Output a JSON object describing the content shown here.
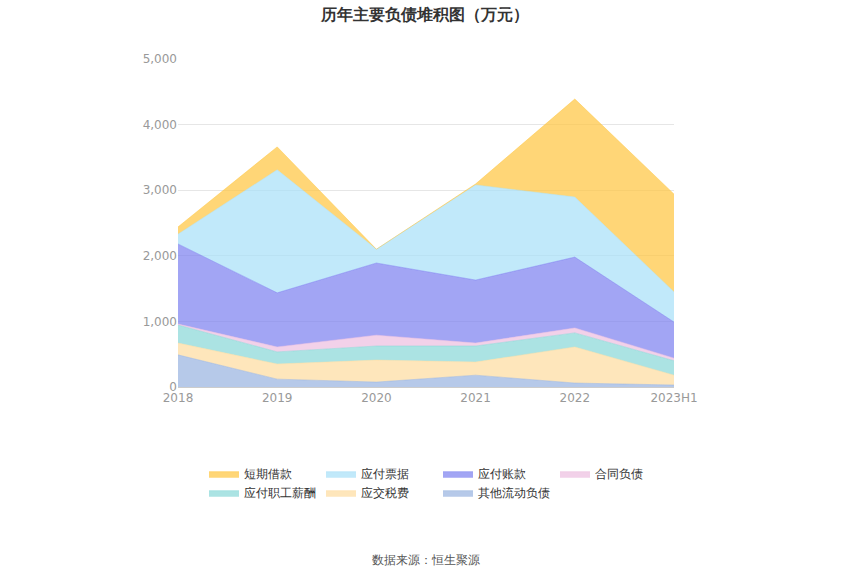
{
  "chart_data": {
    "type": "area",
    "title": "历年主要负债堆积图（万元）",
    "annotations": [
      "数据来源：恒生聚源"
    ],
    "categories": [
      "2018",
      "2019",
      "2020",
      "2021",
      "2022",
      "2023H1"
    ],
    "stacked": true,
    "grid": true,
    "legend": "bottom",
    "ylim": [
      0,
      5000
    ],
    "yticks": [
      0,
      {
        "value": 1000,
        "label": "1,000"
      },
      {
        "value": 2000,
        "label": "2,000"
      },
      {
        "value": 3000,
        "label": "3,000"
      },
      {
        "value": 4000,
        "label": "4,000"
      },
      {
        "value": 5000,
        "label": "5,000"
      }
    ],
    "series": [
      {
        "name": "其他流动负债",
        "color": "#97b2e0",
        "values": [
          490,
          120,
          75,
          180,
          60,
          30
        ]
      },
      {
        "name": "应交税费",
        "color": "#fedc9e",
        "values": [
          180,
          230,
          335,
          200,
          550,
          150
        ]
      },
      {
        "name": "应付职工薪酬",
        "color": "#87d7d7",
        "values": [
          275,
          185,
          215,
          245,
          215,
          220
        ]
      },
      {
        "name": "合同负债",
        "color": "#ecbde0",
        "values": [
          15,
          75,
          165,
          45,
          75,
          40
        ]
      },
      {
        "name": "应付账款",
        "color": "#7b7ff0",
        "values": [
          1220,
          825,
          1100,
          960,
          1080,
          550
        ]
      },
      {
        "name": "应付票据",
        "color": "#a7e0f8",
        "values": [
          150,
          1875,
          210,
          1450,
          915,
          460
        ]
      },
      {
        "name": "短期借款",
        "color": "#ffc53d",
        "values": [
          110,
          350,
          0,
          15,
          1495,
          1490
        ]
      }
    ]
  }
}
